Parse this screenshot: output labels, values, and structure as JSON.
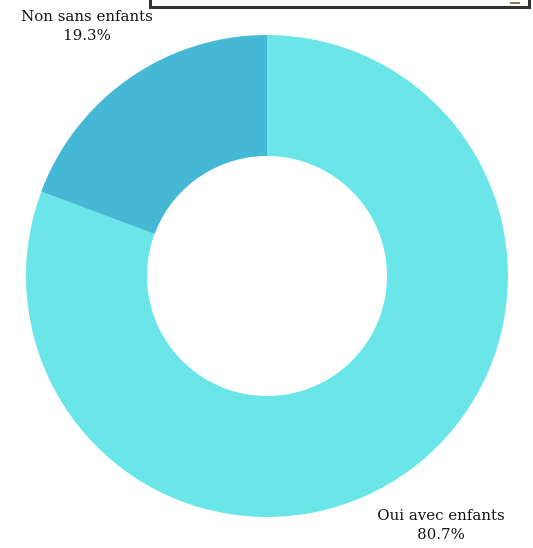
{
  "chart_data": {
    "type": "pie",
    "donut": true,
    "title": "",
    "categories": [
      "Oui avec enfants",
      "Non sans enfants"
    ],
    "values": [
      80.7,
      19.3
    ],
    "labels": [
      "80.7%",
      "19.3%"
    ],
    "colors": [
      "#6ae6e9",
      "#45b8d6"
    ],
    "start_angle_deg": 0,
    "direction": "clockwise",
    "legend": "none"
  }
}
